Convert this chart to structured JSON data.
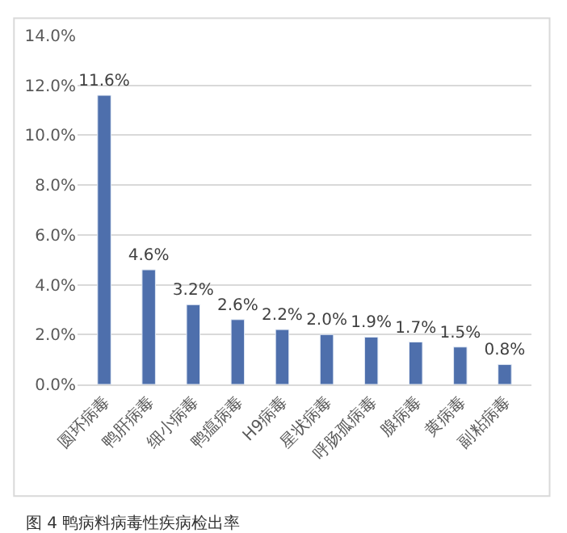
{
  "chart_data": {
    "type": "bar",
    "categories": [
      "圆环病毒",
      "鸭肝病毒",
      "细小病毒",
      "鸭瘟病毒",
      "H9病毒",
      "星状病毒",
      "呼肠孤病毒",
      "腺病毒",
      "黄病毒",
      "副粘病毒"
    ],
    "values": [
      11.6,
      4.6,
      3.2,
      2.6,
      2.2,
      2.0,
      1.9,
      1.7,
      1.5,
      0.8
    ],
    "value_labels": [
      "11.6%",
      "4.6%",
      "3.2%",
      "2.6%",
      "2.2%",
      "2.0%",
      "1.9%",
      "1.7%",
      "1.5%",
      "0.8%"
    ],
    "color": "#4e6fac",
    "ylim": [
      0,
      14
    ],
    "yticks": [
      {
        "value": 0,
        "label": "0.0%"
      },
      {
        "value": 2,
        "label": "2.0%"
      },
      {
        "value": 4,
        "label": "4.0%"
      },
      {
        "value": 6,
        "label": "6.0%"
      },
      {
        "value": 8,
        "label": "8.0%"
      },
      {
        "value": 10,
        "label": "10.0%"
      },
      {
        "value": 12,
        "label": "12.0%"
      },
      {
        "value": 14,
        "label": "14.0%"
      }
    ],
    "grid": "y",
    "annotations": [
      "图 4 鸭病料病毒性疾病检出率"
    ]
  }
}
